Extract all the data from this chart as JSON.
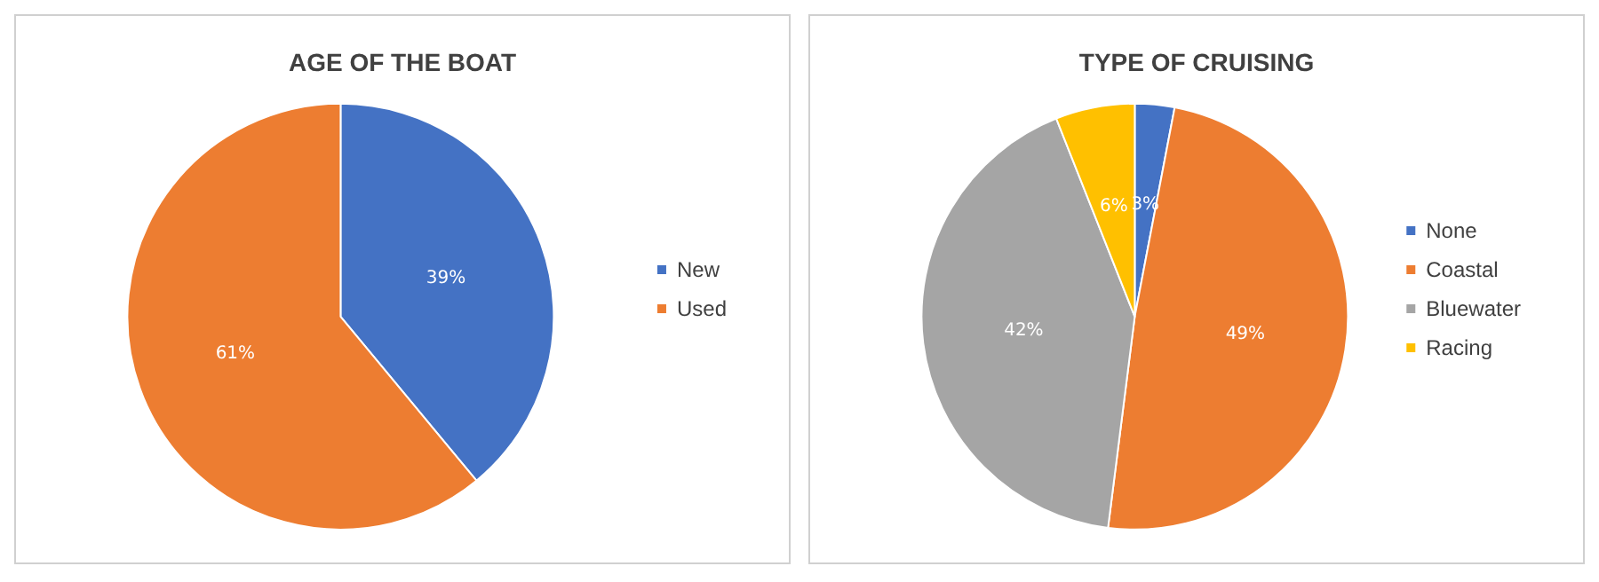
{
  "chart_data": [
    {
      "type": "pie",
      "title": "AGE OF THE BOAT",
      "categories": [
        "New",
        "Used"
      ],
      "values": [
        39,
        61
      ],
      "colors": [
        "#4472c4",
        "#ed7d31"
      ],
      "value_labels": [
        "39%",
        "61%"
      ],
      "legend": "right"
    },
    {
      "type": "pie",
      "title": "TYPE OF CRUISING",
      "categories": [
        "None",
        "Coastal",
        "Bluewater",
        "Racing"
      ],
      "values": [
        3,
        49,
        42,
        6
      ],
      "colors": [
        "#4472c4",
        "#ed7d31",
        "#a5a5a5",
        "#ffc000"
      ],
      "value_labels": [
        "3%",
        "49%",
        "42%",
        "6%"
      ],
      "legend": "right"
    }
  ]
}
